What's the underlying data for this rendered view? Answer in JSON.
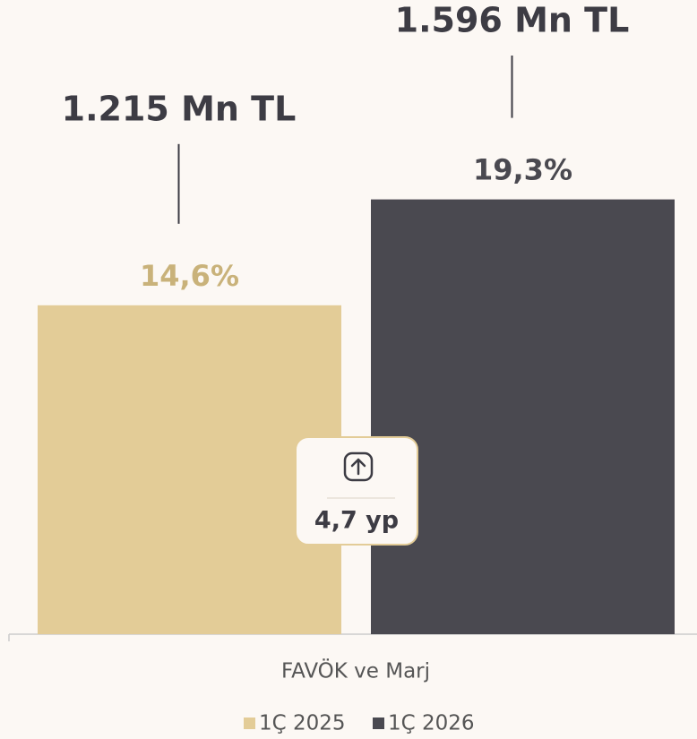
{
  "chart_data": {
    "type": "bar",
    "categories": [
      "FAVÖK ve Marj"
    ],
    "series": [
      {
        "name": "1Ç 2025",
        "color": "#e3cc97",
        "label_color": "#c9b27a",
        "values": [
          14.6
        ],
        "value_labels": [
          "14,6%"
        ],
        "amount_labels": [
          "1.215 Mn TL"
        ]
      },
      {
        "name": "1Ç 2026",
        "color": "#4a4950",
        "label_color": "#4a4950",
        "values": [
          19.3
        ],
        "value_labels": [
          "19,3%"
        ],
        "amount_labels": [
          "1.596 Mn TL"
        ]
      }
    ],
    "badge": "4,7 yp",
    "ylim": [
      0,
      20
    ]
  }
}
